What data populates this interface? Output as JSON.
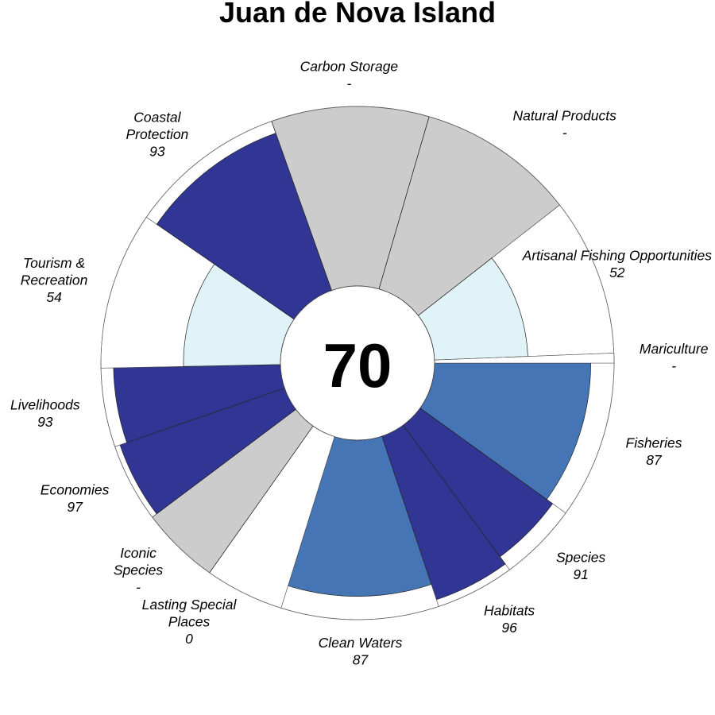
{
  "chart_data": {
    "type": "flower",
    "title": "Juan de Nova Island",
    "overall_score": "70",
    "ylim": [
      0,
      100
    ],
    "petals": [
      {
        "name": "Fisheries",
        "label_lines": [
          "Fisheries"
        ],
        "value_text": "87",
        "score": 87,
        "weight": 1,
        "color": "#4575b4"
      },
      {
        "name": "Species",
        "label_lines": [
          "Species"
        ],
        "value_text": "91",
        "score": 91,
        "weight": 0.5,
        "color": "#313695"
      },
      {
        "name": "Habitats",
        "label_lines": [
          "Habitats"
        ],
        "value_text": "96",
        "score": 96,
        "weight": 0.5,
        "color": "#313695"
      },
      {
        "name": "Clean Waters",
        "label_lines": [
          "Clean Waters"
        ],
        "value_text": "87",
        "score": 87,
        "weight": 1,
        "color": "#4575b4"
      },
      {
        "name": "Lasting Special Places",
        "label_lines": [
          "Lasting Special",
          "Places"
        ],
        "value_text": "0",
        "score": 0,
        "weight": 0.5,
        "color": "#ffffff"
      },
      {
        "name": "Iconic Species",
        "label_lines": [
          "Iconic",
          "Species"
        ],
        "value_text": "-",
        "score": 100,
        "weight": 0.5,
        "color": "#cccccc"
      },
      {
        "name": "Economies",
        "label_lines": [
          "Economies"
        ],
        "value_text": "97",
        "score": 97,
        "weight": 0.5,
        "color": "#313695"
      },
      {
        "name": "Livelihoods",
        "label_lines": [
          "Livelihoods"
        ],
        "value_text": "93",
        "score": 93,
        "weight": 0.5,
        "color": "#313695"
      },
      {
        "name": "Tourism & Recreation",
        "label_lines": [
          "Tourism &",
          "Recreation"
        ],
        "value_text": "54",
        "score": 54,
        "weight": 1,
        "color": "#e0f3f8"
      },
      {
        "name": "Coastal Protection",
        "label_lines": [
          "Coastal",
          "Protection"
        ],
        "value_text": "93",
        "score": 93,
        "weight": 1,
        "color": "#313695"
      },
      {
        "name": "Carbon Storage",
        "label_lines": [
          "Carbon Storage"
        ],
        "value_text": "-",
        "score": 100,
        "weight": 1,
        "color": "#cccccc"
      },
      {
        "name": "Natural Products",
        "label_lines": [
          "Natural Products"
        ],
        "value_text": "-",
        "score": 100,
        "weight": 1,
        "color": "#cccccc"
      },
      {
        "name": "Artisanal Fishing Opportunities",
        "label_lines": [
          "Artisanal Fishing Opportunities"
        ],
        "value_text": "52",
        "score": 52,
        "weight": 1,
        "color": "#e0f3f8"
      },
      {
        "name": "Mariculture",
        "label_lines": [
          "Mariculture"
        ],
        "value_text": "-",
        "score": 0,
        "weight": 0.0625,
        "color": "#cccccc"
      }
    ]
  }
}
